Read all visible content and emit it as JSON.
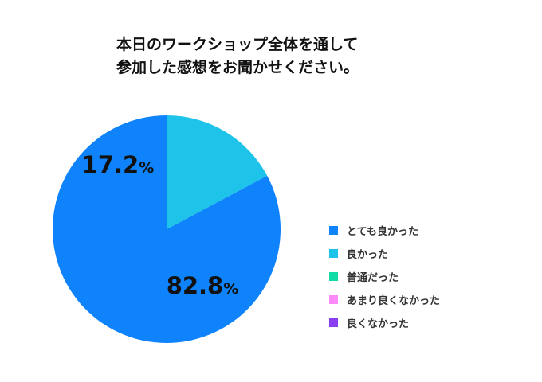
{
  "chart_data": {
    "type": "pie",
    "title": "本日のワークショップ全体を通して参加した感想をお聞かせください。",
    "title_lines": [
      "本日のワークショップ全体を通して",
      "参加した感想をお聞かせください。"
    ],
    "categories": [
      "とても良かった",
      "良かった",
      "普通だった",
      "あまり良くなかった",
      "良くなかった"
    ],
    "values": [
      82.8,
      17.2,
      0,
      0,
      0
    ],
    "unit": "%",
    "colors": [
      "#0f83fb",
      "#1dc3e8",
      "#12dba8",
      "#f98af8",
      "#8a3ef2"
    ],
    "legend_position": "right",
    "slice_labels": [
      {
        "number": "82.8",
        "unit": "%"
      },
      {
        "number": "17.2",
        "unit": "%"
      },
      null,
      null,
      null
    ]
  }
}
